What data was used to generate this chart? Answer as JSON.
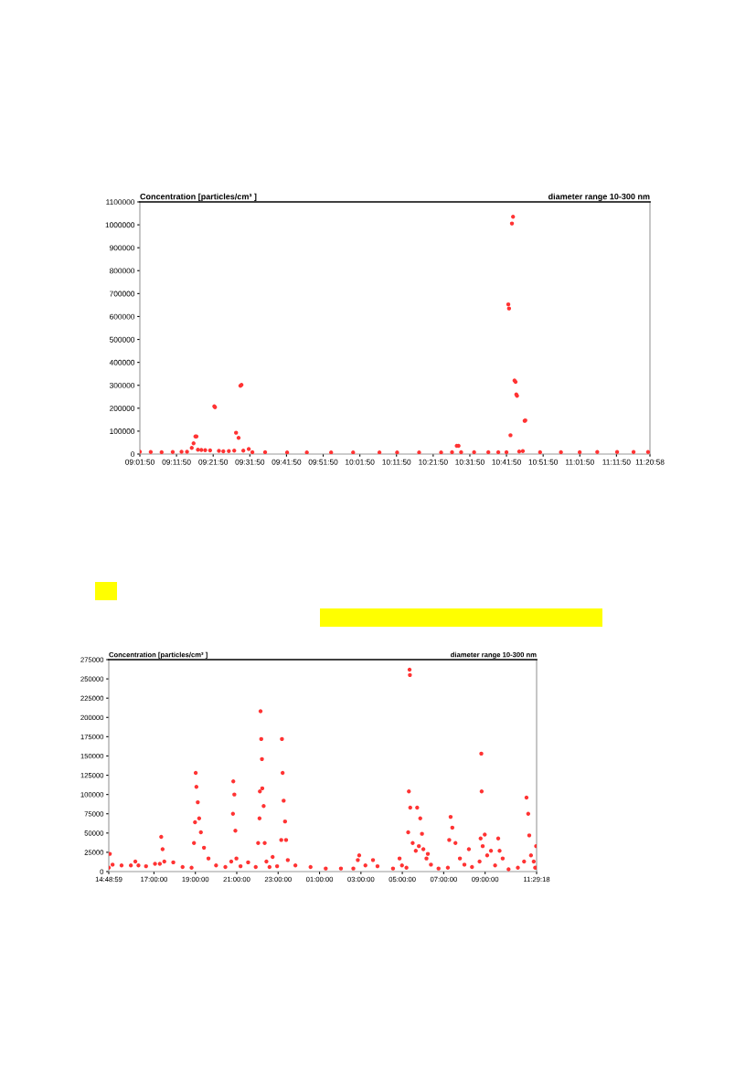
{
  "chart_data": [
    {
      "type": "scatter",
      "title": "Concentration [particles/cm³ ]",
      "subtitle": "diameter range 10-300 nm",
      "marker": "circle",
      "grid": false,
      "xlim": [
        9.0306,
        11.3494
      ],
      "xticks": [
        {
          "value": 9.0306,
          "label": "09:01:50"
        },
        {
          "value": 9.1972,
          "label": "09:11:50"
        },
        {
          "value": 9.3639,
          "label": "09:21:50"
        },
        {
          "value": 9.5306,
          "label": "09:31:50"
        },
        {
          "value": 9.6972,
          "label": "09:41:50"
        },
        {
          "value": 9.8639,
          "label": "09:51:50"
        },
        {
          "value": 10.0306,
          "label": "10:01:50"
        },
        {
          "value": 10.1972,
          "label": "10:11:50"
        },
        {
          "value": 10.3639,
          "label": "10:21:50"
        },
        {
          "value": 10.5306,
          "label": "10:31:50"
        },
        {
          "value": 10.6972,
          "label": "10:41:50"
        },
        {
          "value": 10.8639,
          "label": "10:51:50"
        },
        {
          "value": 11.0306,
          "label": "11:01:50"
        },
        {
          "value": 11.1972,
          "label": "11:11:50"
        },
        {
          "value": 11.3494,
          "label": "11:20:58"
        }
      ],
      "ylim": [
        0,
        1100000
      ],
      "yticks": [
        0,
        100000,
        200000,
        300000,
        400000,
        500000,
        600000,
        700000,
        800000,
        900000,
        1000000,
        1100000
      ],
      "series": [
        {
          "color": "#ff3333",
          "x": [
            9.0306,
            9.08,
            9.1295,
            9.18,
            9.22,
            9.245,
            9.2665,
            9.2748,
            9.283,
            9.288,
            9.2946,
            9.31,
            9.3276,
            9.35,
            9.3689,
            9.3722,
            9.39,
            9.4101,
            9.435,
            9.4596,
            9.4679,
            9.4794,
            9.4876,
            9.4926,
            9.5009,
            9.5256,
            9.5421,
            9.6,
            9.7,
            9.7897,
            9.9,
            10.0,
            10.1197,
            10.2,
            10.3,
            10.4,
            10.4497,
            10.4711,
            10.4794,
            10.491,
            10.55,
            10.6147,
            10.66,
            10.6972,
            10.7055,
            10.7088,
            10.7154,
            10.722,
            10.727,
            10.7336,
            10.7385,
            10.7418,
            10.7452,
            10.755,
            10.7715,
            10.7797,
            10.783,
            10.85,
            10.9448,
            11.03,
            11.1098,
            11.2,
            11.2748,
            11.3408
          ],
          "values": [
            10000,
            9000,
            8000,
            9000,
            10000,
            10000,
            27000,
            47000,
            77000,
            77000,
            19000,
            18000,
            17000,
            16000,
            208000,
            204000,
            14000,
            12000,
            13000,
            15000,
            93000,
            71000,
            298000,
            302000,
            15000,
            22000,
            8000,
            8000,
            7000,
            7000,
            7000,
            7000,
            7000,
            7000,
            7000,
            7000,
            8000,
            36000,
            36000,
            8000,
            8000,
            8000,
            8000,
            8000,
            653000,
            635000,
            82000,
            1006000,
            1035000,
            321000,
            315000,
            260000,
            254000,
            11000,
            13000,
            145000,
            147000,
            8000,
            8000,
            8000,
            9000,
            9000,
            9000,
            9000
          ]
        }
      ]
    },
    {
      "type": "scatter",
      "title": "Concentration [particles/cm³ ]",
      "subtitle": "diameter range 10-300 nm",
      "marker": "circle",
      "grid": false,
      "xlim": [
        "2000-01-01T14:48:59",
        "2000-01-02T11:29:18"
      ],
      "xticks": [
        {
          "value": "2000-01-01T14:48:59",
          "label": "14:48:59"
        },
        {
          "value": "2000-01-01T17:00",
          "label": "17:00:00"
        },
        {
          "value": "2000-01-01T19:00",
          "label": "19:00:00"
        },
        {
          "value": "2000-01-01T21:00",
          "label": "21:00:00"
        },
        {
          "value": "2000-01-01T23:00",
          "label": "23:00:00"
        },
        {
          "value": "2000-01-02T01:00",
          "label": "01:00:00"
        },
        {
          "value": "2000-01-02T03:00",
          "label": "03:00:00"
        },
        {
          "value": "2000-01-02T05:00",
          "label": "05:00:00"
        },
        {
          "value": "2000-01-02T07:00",
          "label": "07:00:00"
        },
        {
          "value": "2000-01-02T09:00",
          "label": "09:00:00"
        },
        {
          "value": "2000-01-02T11:29:18",
          "label": "11:29:18"
        }
      ],
      "ylim": [
        0,
        275000
      ],
      "yticks": [
        0,
        25000,
        50000,
        75000,
        100000,
        125000,
        150000,
        175000,
        200000,
        225000,
        250000,
        275000
      ],
      "series": [
        {
          "color": "#ff3333",
          "x": [
            "2000-01-01T14:48:59",
            "2000-01-01T14:52",
            "2000-01-01T15:00",
            "2000-01-01T15:26",
            "2000-01-01T15:53",
            "2000-01-01T16:06",
            "2000-01-01T16:15",
            "2000-01-01T16:37",
            "2000-01-01T17:03",
            "2000-01-01T17:17",
            "2000-01-01T17:21",
            "2000-01-01T17:25",
            "2000-01-01T17:30",
            "2000-01-01T17:56",
            "2000-01-01T18:23",
            "2000-01-01T18:49",
            "2000-01-01T18:56",
            "2000-01-01T18:59",
            "2000-01-01T19:01",
            "2000-01-01T19:03",
            "2000-01-01T19:07",
            "2000-01-01T19:11",
            "2000-01-01T19:16",
            "2000-01-01T19:25",
            "2000-01-01T19:38",
            "2000-01-01T20:00",
            "2000-01-01T20:27",
            "2000-01-01T20:44",
            "2000-01-01T20:49",
            "2000-01-01T20:50",
            "2000-01-01T20:53",
            "2000-01-01T20:56",
            "2000-01-01T20:59",
            "2000-01-01T21:11",
            "2000-01-01T21:33",
            "2000-01-01T21:55",
            "2000-01-01T22:02",
            "2000-01-01T22:06",
            "2000-01-01T22:07",
            "2000-01-01T22:09",
            "2000-01-01T22:11",
            "2000-01-01T22:13",
            "2000-01-01T22:14",
            "2000-01-01T22:18",
            "2000-01-01T22:21",
            "2000-01-01T22:26",
            "2000-01-01T22:35",
            "2000-01-01T22:44",
            "2000-01-01T22:57",
            "2000-01-01T23:09",
            "2000-01-01T23:11",
            "2000-01-01T23:13",
            "2000-01-01T23:16",
            "2000-01-01T23:20",
            "2000-01-01T23:23",
            "2000-01-01T23:28",
            "2000-01-01T23:50",
            "2000-01-02T00:34",
            "2000-01-02T01:18",
            "2000-01-02T02:02",
            "2000-01-02T02:38",
            "2000-01-02T02:51",
            "2000-01-02T02:55",
            "2000-01-02T03:13",
            "2000-01-02T03:35",
            "2000-01-02T03:48",
            "2000-01-02T04:33",
            "2000-01-02T04:52",
            "2000-01-02T04:59",
            "2000-01-02T05:12",
            "2000-01-02T05:17",
            "2000-01-02T05:19",
            "2000-01-02T05:21",
            "2000-01-02T05:22",
            "2000-01-02T05:23",
            "2000-01-02T05:30",
            "2000-01-02T05:39",
            "2000-01-02T05:43",
            "2000-01-02T05:48",
            "2000-01-02T05:52",
            "2000-01-02T05:57",
            "2000-01-02T06:01",
            "2000-01-02T06:10",
            "2000-01-02T06:14",
            "2000-01-02T06:23",
            "2000-01-02T06:45",
            "2000-01-02T07:12",
            "2000-01-02T07:16",
            "2000-01-02T07:20",
            "2000-01-02T07:25",
            "2000-01-02T07:34",
            "2000-01-02T07:47",
            "2000-01-02T08:00",
            "2000-01-02T08:13",
            "2000-01-02T08:22",
            "2000-01-02T08:44",
            "2000-01-02T08:47",
            "2000-01-02T08:49",
            "2000-01-02T08:50",
            "2000-01-02T08:53",
            "2000-01-02T08:59",
            "2000-01-02T09:06",
            "2000-01-02T09:17",
            "2000-01-02T09:29",
            "2000-01-02T09:38",
            "2000-01-02T09:42",
            "2000-01-02T09:51",
            "2000-01-02T10:08",
            "2000-01-02T10:35",
            "2000-01-02T10:53",
            "2000-01-02T11:00",
            "2000-01-02T11:05",
            "2000-01-02T11:08",
            "2000-01-02T11:13",
            "2000-01-02T11:21",
            "2000-01-02T11:25",
            "2000-01-02T11:28",
            "2000-01-02T11:29"
          ],
          "values": [
            5000,
            23000,
            9000,
            8000,
            8000,
            13000,
            8000,
            7000,
            10000,
            10000,
            45000,
            29000,
            13000,
            12000,
            6000,
            5000,
            37000,
            64000,
            128000,
            110000,
            90000,
            69000,
            51000,
            31000,
            17000,
            8000,
            6000,
            13000,
            75000,
            117000,
            100000,
            53000,
            17000,
            7000,
            12000,
            6000,
            37000,
            69000,
            104000,
            208000,
            172000,
            146000,
            108000,
            85000,
            37000,
            13000,
            6000,
            19000,
            7000,
            41000,
            172000,
            128000,
            92000,
            65000,
            41000,
            15000,
            8000,
            6000,
            4000,
            4000,
            4000,
            15000,
            21000,
            8000,
            15000,
            7000,
            4000,
            17000,
            8000,
            5000,
            51000,
            104000,
            262000,
            255000,
            83000,
            37000,
            27000,
            83000,
            33000,
            69000,
            49000,
            29000,
            17000,
            23000,
            9000,
            4000,
            5000,
            41000,
            71000,
            57000,
            37000,
            17000,
            9000,
            29000,
            6000,
            13000,
            43000,
            153000,
            104000,
            33000,
            48000,
            21000,
            27000,
            8000,
            43000,
            27000,
            17000,
            3000,
            5000,
            13000,
            96000,
            75000,
            47000,
            21000,
            13000,
            5000,
            33000,
            5000
          ]
        }
      ]
    }
  ]
}
